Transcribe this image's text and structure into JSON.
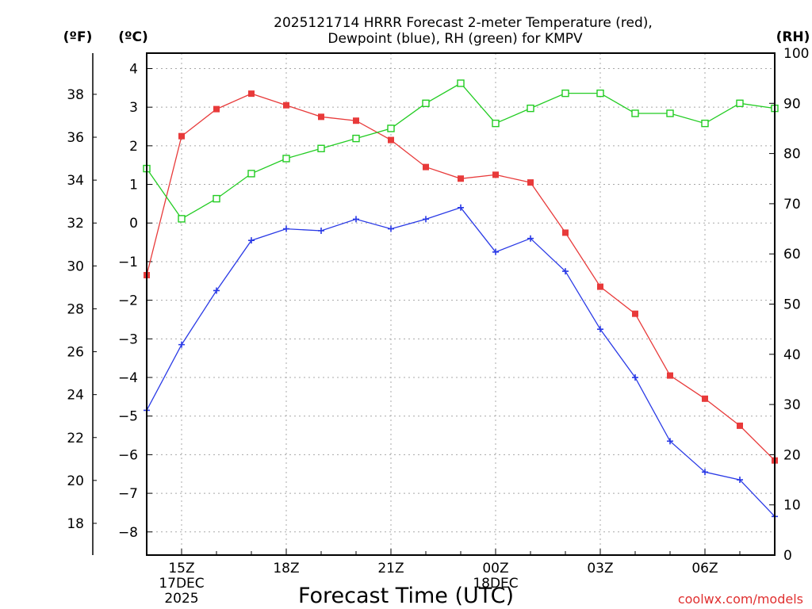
{
  "chart_data": {
    "type": "line",
    "title_line1": "2025121714 HRRR Forecast 2-meter Temperature (red),",
    "title_line2": "Dewpoint (blue), RH (green) for KMPV",
    "xlabel": "Forecast Time (UTC)",
    "left_outer_unit": "(ºF)",
    "left_inner_unit": "(ºC)",
    "right_unit": "(RH)",
    "credit": "coolwx.com/models",
    "x_range_hours": [
      0,
      18
    ],
    "x_ticks": [
      {
        "hour": 1,
        "lines": [
          "15Z",
          "17DEC",
          "2025"
        ]
      },
      {
        "hour": 4,
        "lines": [
          "18Z"
        ]
      },
      {
        "hour": 7,
        "lines": [
          "21Z"
        ]
      },
      {
        "hour": 10,
        "lines": [
          "00Z",
          "18DEC"
        ]
      },
      {
        "hour": 13,
        "lines": [
          "03Z"
        ]
      },
      {
        "hour": 16,
        "lines": [
          "06Z"
        ]
      }
    ],
    "celsius_range": [
      -8.6,
      4.4
    ],
    "celsius_ticks": [
      "4",
      "3",
      "2",
      "1",
      "0",
      "−1",
      "−2",
      "−3",
      "−4",
      "−5",
      "−6",
      "−7",
      "−8"
    ],
    "fahrenheit_ticks": [
      "38",
      "36",
      "34",
      "32",
      "30",
      "28",
      "26",
      "24",
      "22",
      "20",
      "18"
    ],
    "rh_range": [
      0,
      100
    ],
    "rh_ticks": [
      "100",
      "90",
      "80",
      "70",
      "60",
      "50",
      "40",
      "30",
      "20",
      "10",
      "0"
    ],
    "hours": [
      0,
      1,
      2,
      3,
      4,
      5,
      6,
      7,
      8,
      9,
      10,
      11,
      12,
      13,
      14,
      15,
      16,
      17,
      18
    ],
    "series": [
      {
        "name": "2-meter Temperature",
        "unit": "C",
        "color": "#e83a3a",
        "marker": "filled-square",
        "values": [
          -1.35,
          2.25,
          2.95,
          3.35,
          3.05,
          2.75,
          2.65,
          2.15,
          1.45,
          1.15,
          1.25,
          1.05,
          -0.25,
          -1.65,
          -2.35,
          -3.95,
          -4.55,
          -5.25,
          -6.15
        ]
      },
      {
        "name": "Dewpoint",
        "unit": "C",
        "color": "#2a3ae6",
        "marker": "plus",
        "values": [
          -4.85,
          -3.15,
          -1.75,
          -0.45,
          -0.15,
          -0.2,
          0.1,
          -0.15,
          0.1,
          0.4,
          -0.75,
          -0.4,
          -1.25,
          -2.75,
          -4.0,
          -5.65,
          -6.45,
          -6.65,
          -7.6
        ]
      },
      {
        "name": "RH",
        "unit": "%",
        "color": "#22cc22",
        "marker": "open-square",
        "values": [
          77,
          67,
          71,
          76,
          79,
          81,
          83,
          85,
          90,
          94,
          86,
          89,
          92,
          92,
          88,
          88,
          86,
          90,
          89
        ]
      }
    ]
  }
}
